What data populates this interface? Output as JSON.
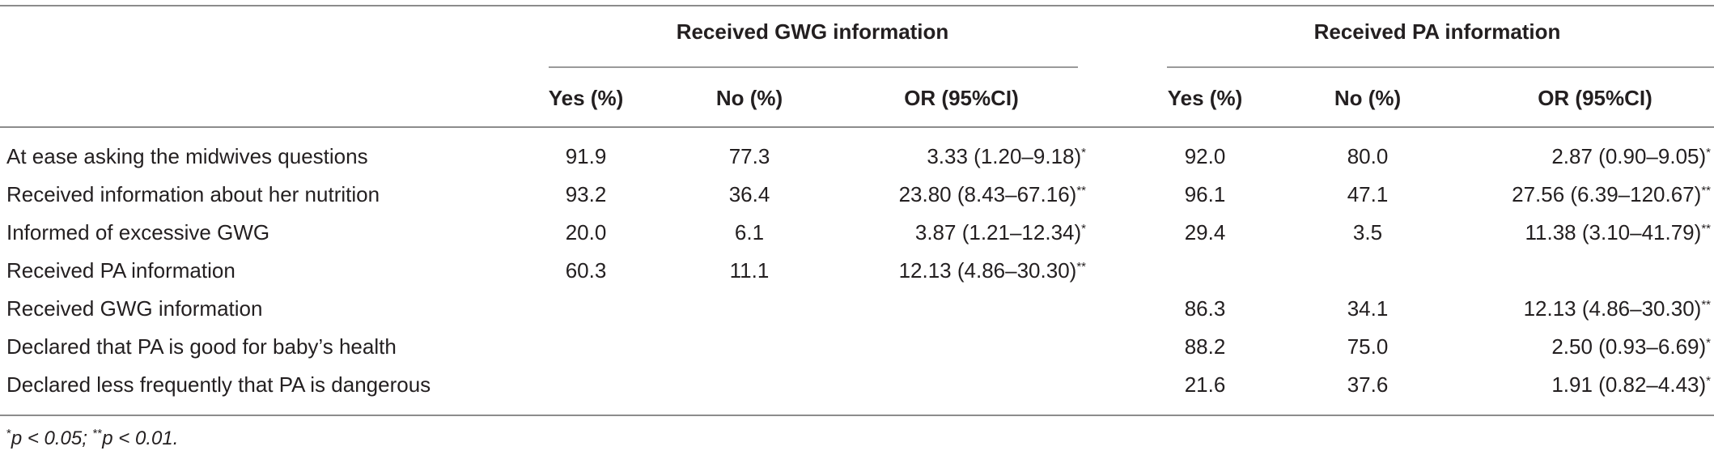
{
  "table": {
    "groups": [
      {
        "label": "Received GWG information"
      },
      {
        "label": "Received PA information"
      }
    ],
    "subheaders": [
      "Yes (%)",
      "No (%)",
      "OR (95%CI)",
      "Yes (%)",
      "No (%)",
      "OR (95%CI)"
    ],
    "rows": [
      {
        "label": "At ease asking the midwives questions",
        "gwg_yes": "91.9",
        "gwg_no": "77.3",
        "gwg_or": "3.33 (1.20–9.18)",
        "gwg_sig": "*",
        "pa_yes": "92.0",
        "pa_no": "80.0",
        "pa_or": "2.87 (0.90–9.05)",
        "pa_sig": "*"
      },
      {
        "label": "Received information about her nutrition",
        "gwg_yes": "93.2",
        "gwg_no": "36.4",
        "gwg_or": "23.80 (8.43–67.16)",
        "gwg_sig": "**",
        "pa_yes": "96.1",
        "pa_no": "47.1",
        "pa_or": "27.56 (6.39–120.67)",
        "pa_sig": "**"
      },
      {
        "label": "Informed of excessive GWG",
        "gwg_yes": "20.0",
        "gwg_no": "6.1",
        "gwg_or": "3.87 (1.21–12.34)",
        "gwg_sig": "*",
        "pa_yes": "29.4",
        "pa_no": "3.5",
        "pa_or": "11.38 (3.10–41.79)",
        "pa_sig": "**"
      },
      {
        "label": "Received PA information",
        "gwg_yes": "60.3",
        "gwg_no": "11.1",
        "gwg_or": "12.13 (4.86–30.30)",
        "gwg_sig": "**",
        "pa_yes": "",
        "pa_no": "",
        "pa_or": "",
        "pa_sig": ""
      },
      {
        "label": "Received GWG information",
        "gwg_yes": "",
        "gwg_no": "",
        "gwg_or": "",
        "gwg_sig": "",
        "pa_yes": "86.3",
        "pa_no": "34.1",
        "pa_or": "12.13 (4.86–30.30)",
        "pa_sig": "**"
      },
      {
        "label": "Declared that PA is good for baby’s health",
        "gwg_yes": "",
        "gwg_no": "",
        "gwg_or": "",
        "gwg_sig": "",
        "pa_yes": "88.2",
        "pa_no": "75.0",
        "pa_or": "2.50 (0.93–6.69)",
        "pa_sig": "*"
      },
      {
        "label": "Declared less frequently that PA is dangerous",
        "gwg_yes": "",
        "gwg_no": "",
        "gwg_or": "",
        "gwg_sig": "",
        "pa_yes": "21.6",
        "pa_no": "37.6",
        "pa_or": "1.91 (0.82–4.43)",
        "pa_sig": "*"
      }
    ],
    "footnote": {
      "sig1": "*",
      "text1": "p < 0.05; ",
      "sig2": "**",
      "text2": "p < 0.01."
    }
  }
}
